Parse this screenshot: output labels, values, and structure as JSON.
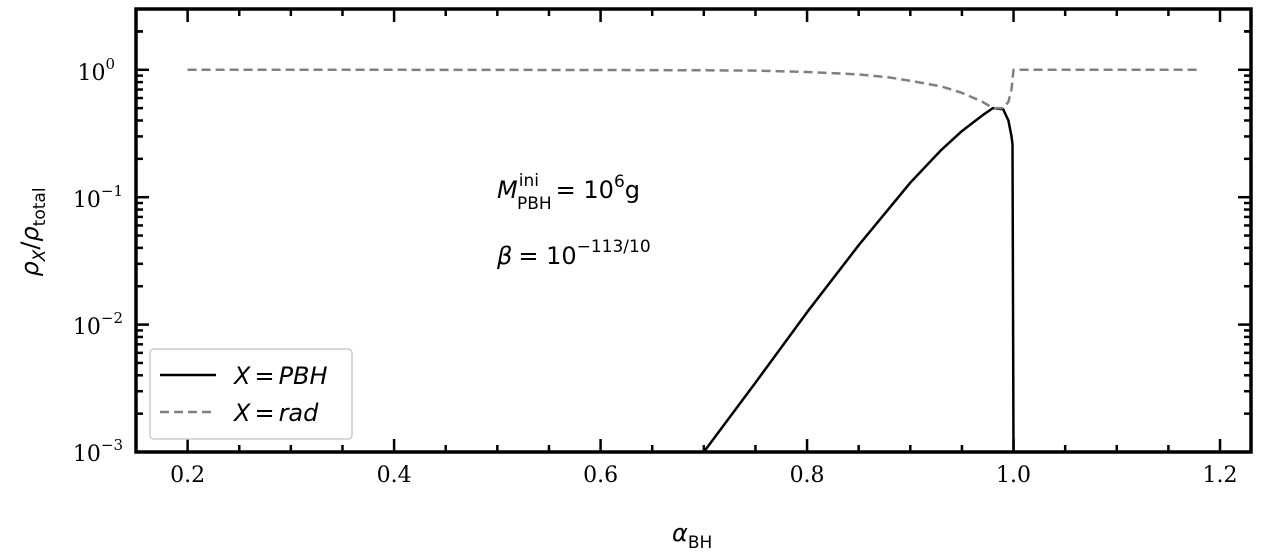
{
  "chart_data": {
    "type": "line",
    "xlabel": "α_BH",
    "ylabel": "ρ_X/ρ_total",
    "xlim": [
      0.15,
      1.23
    ],
    "ylim": [
      0.001,
      3.0
    ],
    "yscale": "log",
    "grid": false,
    "legend_position": "lower-left",
    "x_ticks": [
      0.2,
      0.4,
      0.6,
      0.8,
      1.0,
      1.2
    ],
    "x_tick_labels": [
      "0.2",
      "0.4",
      "0.6",
      "0.8",
      "1.0",
      "1.2"
    ],
    "y_ticks": [
      0.001,
      0.01,
      0.1,
      1
    ],
    "y_tick_labels": [
      {
        "base": "10",
        "exp": "−3"
      },
      {
        "base": "10",
        "exp": "−2"
      },
      {
        "base": "10",
        "exp": "−1"
      },
      {
        "base": "10",
        "exp": "0"
      }
    ],
    "annotations": [
      {
        "main": "M",
        "sup": "ini",
        "sub": "PBH",
        "rest": "= 10",
        "rest_sup": "6",
        "tail": "g"
      },
      {
        "main": "β",
        "rest": "= 10",
        "rest_sup": "−113/10"
      }
    ],
    "series": [
      {
        "name": "X = PBH",
        "legend_label": {
          "lhs": "X",
          "eq": "=",
          "rhs": "PBH"
        },
        "style": "solid",
        "color": "#000000",
        "x": [
          0.7,
          0.75,
          0.8,
          0.85,
          0.9,
          0.93,
          0.95,
          0.97,
          0.98,
          0.99,
          0.995,
          0.998,
          0.999,
          1.0
        ],
        "y": [
          0.001,
          0.0035,
          0.0125,
          0.042,
          0.13,
          0.235,
          0.33,
          0.44,
          0.5,
          0.49,
          0.4,
          0.3,
          0.26,
          0.001
        ]
      },
      {
        "name": "X = rad",
        "legend_label": {
          "lhs": "X",
          "eq": "=",
          "rhs": "rad"
        },
        "style": "dashed",
        "color": "#808080",
        "x": [
          0.2,
          0.4,
          0.6,
          0.7,
          0.75,
          0.8,
          0.85,
          0.88,
          0.9,
          0.93,
          0.95,
          0.97,
          0.98,
          0.99,
          0.995,
          0.998,
          1.0,
          1.1,
          1.18
        ],
        "y": [
          1.0,
          0.999,
          0.997,
          0.99,
          0.985,
          0.96,
          0.92,
          0.87,
          0.82,
          0.74,
          0.66,
          0.56,
          0.5,
          0.5,
          0.56,
          0.7,
          1.0,
          1.0,
          1.0
        ]
      }
    ]
  }
}
